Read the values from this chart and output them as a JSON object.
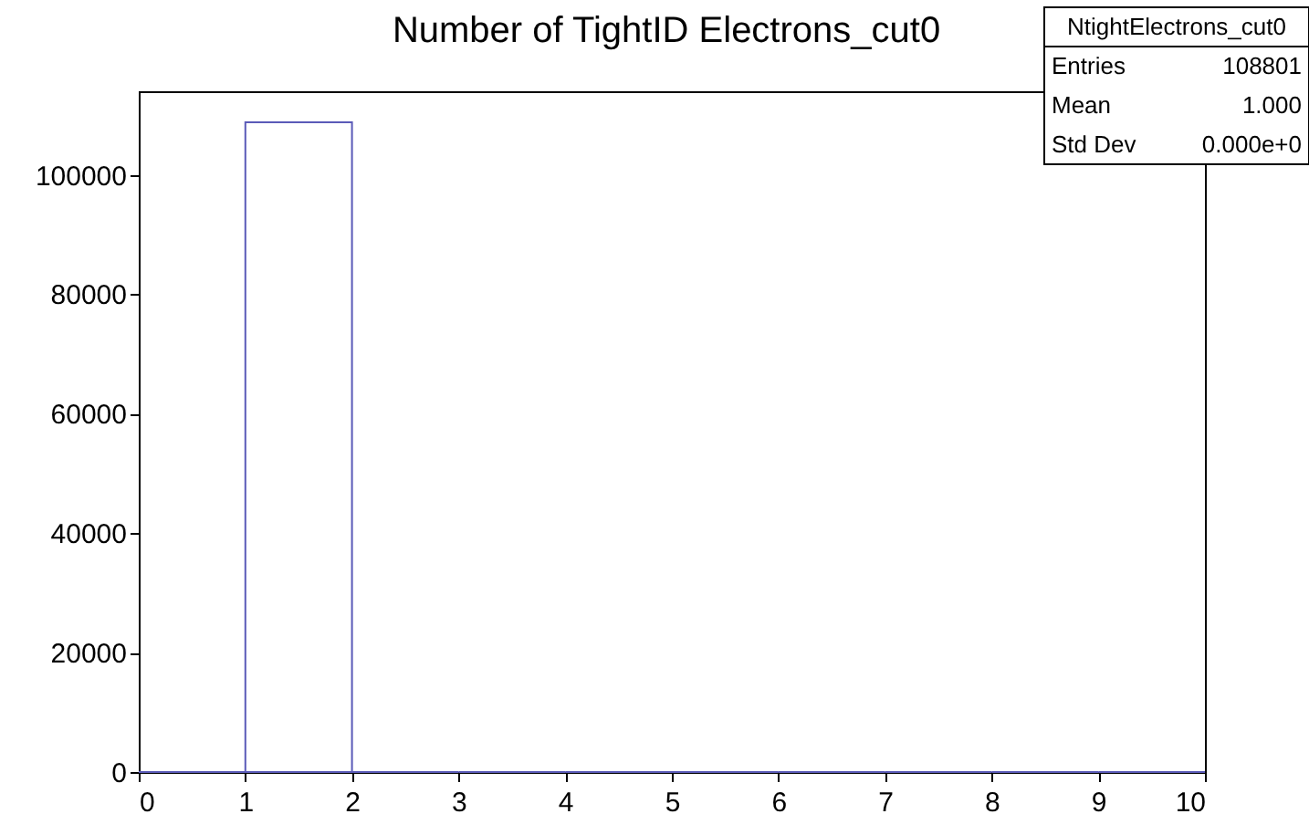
{
  "chart_data": {
    "type": "histogram",
    "title": "Number of TightID Electrons_cut0",
    "bins": [
      0,
      1,
      2,
      3,
      4,
      5,
      6,
      7,
      8,
      9,
      10
    ],
    "values": [
      0,
      108801,
      0,
      0,
      0,
      0,
      0,
      0,
      0,
      0
    ],
    "color": "#5b5bb8",
    "xlim": [
      0,
      10
    ],
    "xticks": [
      0,
      1,
      2,
      3,
      4,
      5,
      6,
      7,
      8,
      9,
      10
    ],
    "ylim": [
      0,
      114000
    ],
    "yticks": [
      0,
      20000,
      40000,
      60000,
      80000,
      100000
    ],
    "grid": false,
    "annotations": [
      "NtightElectrons_cut0",
      "Entries",
      "108801",
      "Mean",
      "1.000",
      "Std Dev",
      "0.000e+0"
    ]
  }
}
